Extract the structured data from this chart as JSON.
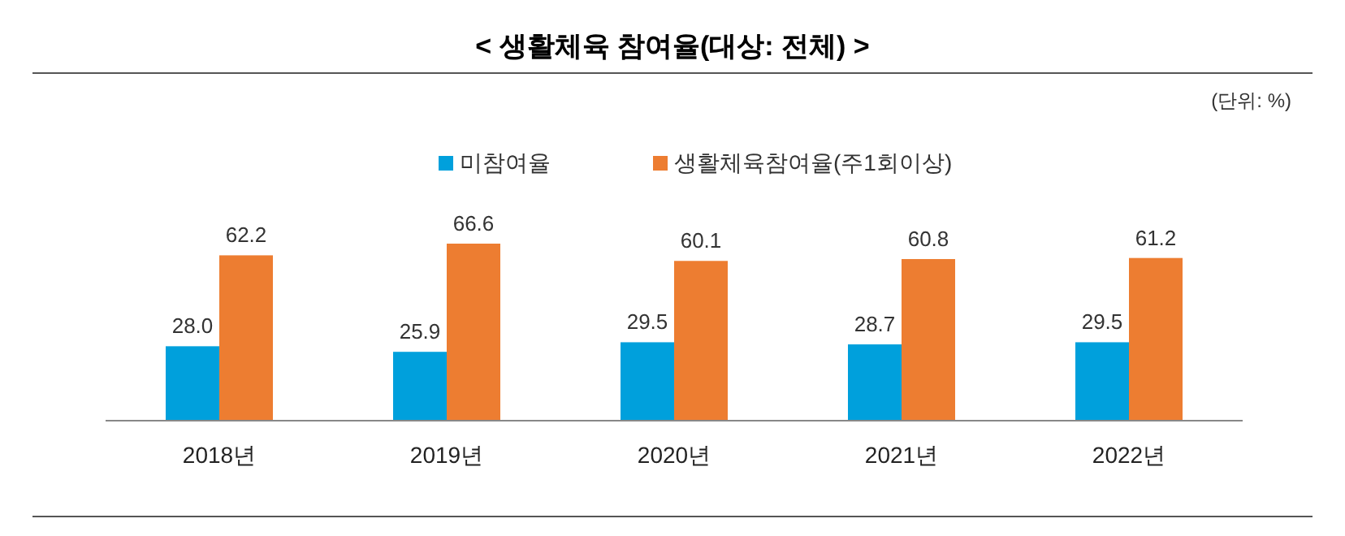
{
  "chart_data": {
    "type": "bar",
    "title": "< 생활체육 참여율(대상: 전체) >",
    "annotations": [
      "(단위: %)"
    ],
    "categories": [
      "2018년",
      "2019년",
      "2020년",
      "2021년",
      "2022년"
    ],
    "series": [
      {
        "name": "미참여율",
        "color": "#00a0dc",
        "values": [
          28.0,
          25.9,
          29.5,
          28.7,
          29.5
        ],
        "value_labels": [
          "28.0",
          "25.9",
          "29.5",
          "28.7",
          "29.5"
        ]
      },
      {
        "name": "생활체육참여율(주1회이상)",
        "color": "#ed7d31",
        "values": [
          62.2,
          66.6,
          60.1,
          60.8,
          61.2
        ],
        "value_labels": [
          "62.2",
          "66.6",
          "60.1",
          "60.8",
          "61.2"
        ]
      }
    ],
    "legend": "top"
  }
}
